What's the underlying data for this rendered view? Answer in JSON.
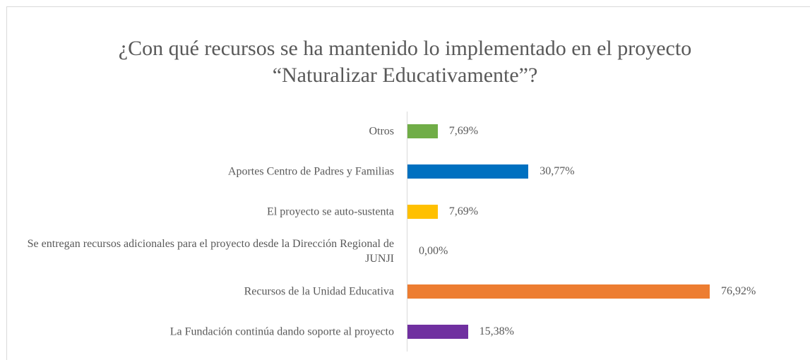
{
  "chart_data": {
    "type": "bar",
    "orientation": "horizontal",
    "title": "¿Con qué recursos se ha mantenido lo implementado en el proyecto “Naturalizar Educativamente”?",
    "categories": [
      "Otros",
      "Aportes Centro de Padres y Familias",
      "El proyecto se auto-sustenta",
      "Se entregan recursos adicionales para el proyecto desde la Dirección Regional de JUNJI",
      "Recursos de la Unidad Educativa",
      "La Fundación continúa dando soporte al proyecto"
    ],
    "values": [
      7.69,
      30.77,
      7.69,
      0.0,
      76.92,
      15.38
    ],
    "value_labels": [
      "7,69%",
      "30,77%",
      "7,69%",
      "0,00%",
      "76,92%",
      "15,38%"
    ],
    "colors": [
      "#70ad47",
      "#0070c0",
      "#ffc000",
      "#a5a5a5",
      "#ed7d31",
      "#7030a0"
    ]
  }
}
